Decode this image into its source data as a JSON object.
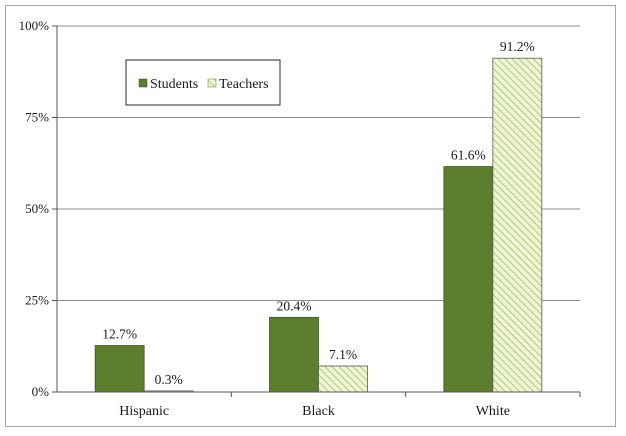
{
  "chart_data": {
    "type": "bar",
    "categories": [
      "Hispanic",
      "Black",
      "White"
    ],
    "series": [
      {
        "name": "Students",
        "values": [
          12.7,
          20.4,
          61.6
        ],
        "labels": [
          "12.7%",
          "20.4%",
          "61.6%"
        ],
        "color": "#5b7f2e"
      },
      {
        "name": "Teachers",
        "values": [
          0.3,
          7.1,
          91.2
        ],
        "labels": [
          "0.3%",
          "7.1%",
          "91.2%"
        ],
        "color": "#e8f0cc",
        "pattern": "diagonal-hatch"
      }
    ],
    "ylim": [
      0,
      100
    ],
    "yticks": [
      {
        "value": 0,
        "label": "0%"
      },
      {
        "value": 25,
        "label": "25%"
      },
      {
        "value": 50,
        "label": "50%"
      },
      {
        "value": 75,
        "label": "75%"
      },
      {
        "value": 100,
        "label": "100%"
      }
    ],
    "grid": true,
    "legend_position": "top-left",
    "title": "",
    "xlabel": "",
    "ylabel": ""
  }
}
